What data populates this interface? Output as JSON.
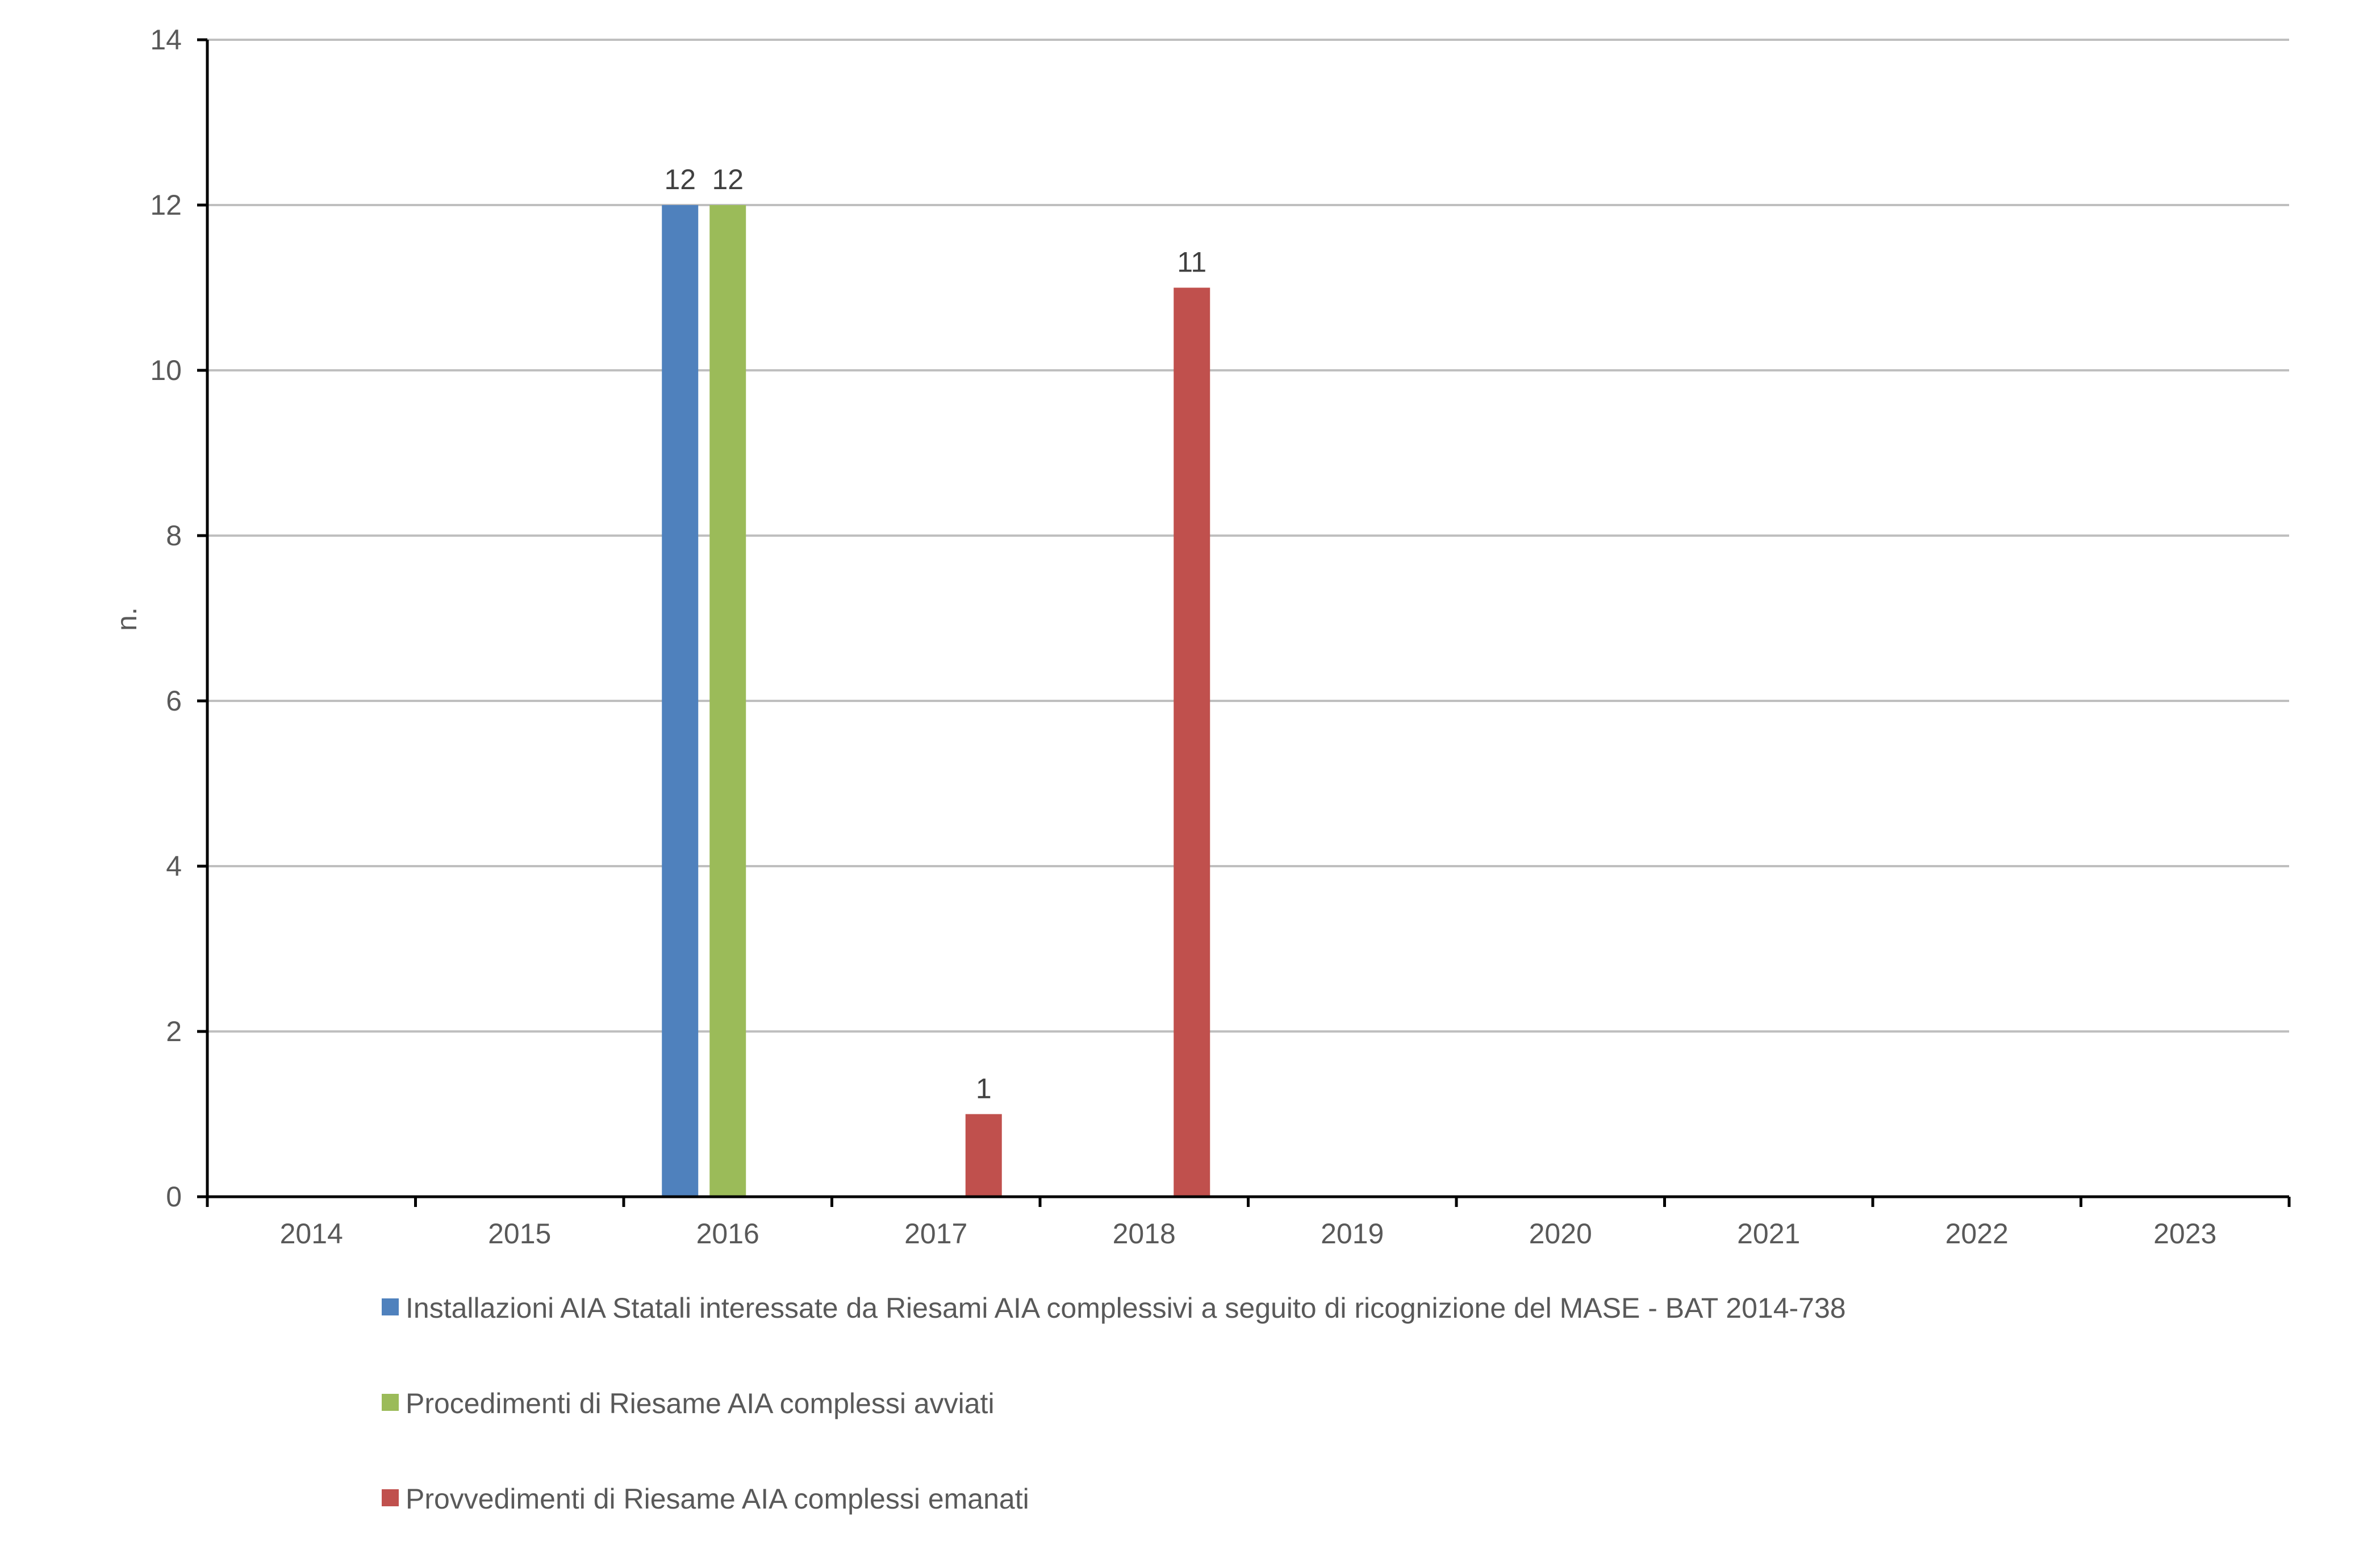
{
  "chart_data": {
    "type": "bar",
    "categories": [
      "2014",
      "2015",
      "2016",
      "2017",
      "2018",
      "2019",
      "2020",
      "2021",
      "2022",
      "2023"
    ],
    "series": [
      {
        "name": "Installazioni AIA Statali interessate da Riesami AIA complessivi a seguito di ricognizione del MASE - BAT 2014-738",
        "color": "#4F81BD",
        "values": [
          null,
          null,
          12,
          null,
          null,
          null,
          null,
          null,
          null,
          null
        ]
      },
      {
        "name": "Procedimenti di Riesame AIA complessi avviati",
        "color": "#9BBB59",
        "values": [
          null,
          null,
          12,
          null,
          null,
          null,
          null,
          null,
          null,
          null
        ]
      },
      {
        "name": "Provvedimenti di Riesame AIA complessi emanati",
        "color": "#C0504D",
        "values": [
          null,
          null,
          null,
          1,
          11,
          null,
          null,
          null,
          null,
          null
        ]
      }
    ],
    "xlabel": "",
    "ylabel": "n.",
    "ylim": [
      0,
      14
    ],
    "yticks": [
      "0",
      "2",
      "4",
      "6",
      "8",
      "10",
      "12",
      "14"
    ],
    "grid": true,
    "legend_position": "bottom",
    "data_labels": true
  }
}
